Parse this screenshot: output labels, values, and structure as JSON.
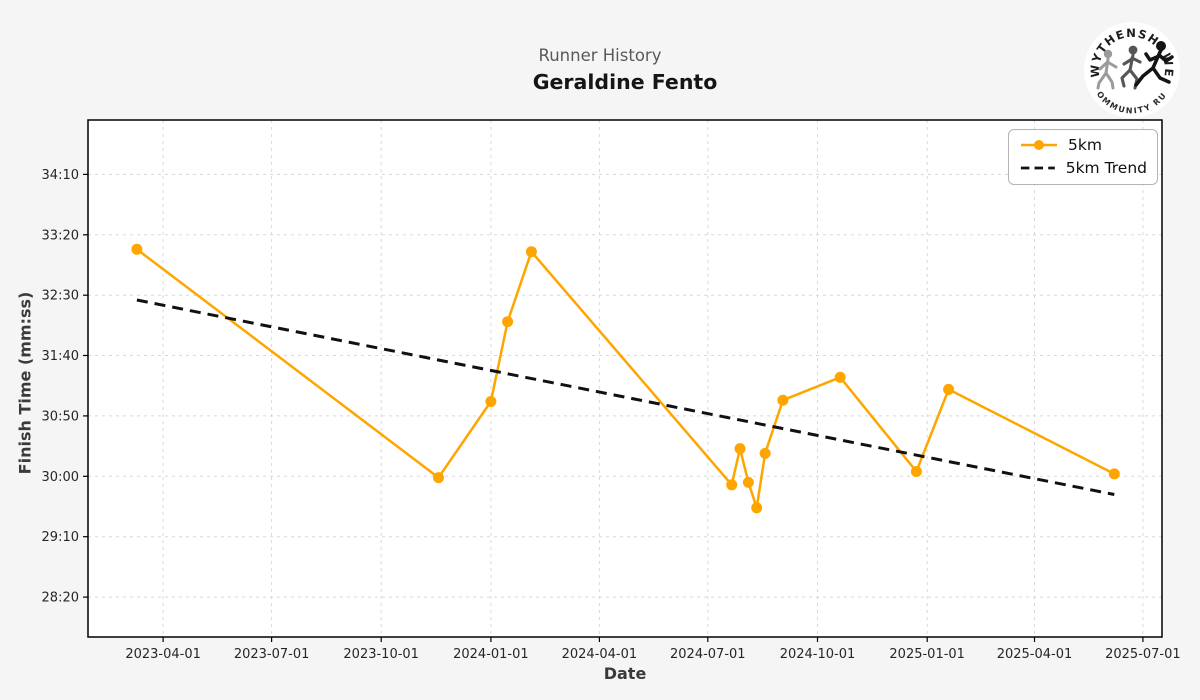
{
  "header": {
    "subtitle": "Runner History",
    "title": "Geraldine Fento"
  },
  "logo": {
    "top_text": "WYTHENSHAWE",
    "bottom_text": "COMMUNITY RUN"
  },
  "chart_data": {
    "type": "line",
    "title": "Runner History",
    "runner": "Geraldine Fento",
    "xlabel": "Date",
    "ylabel": "Finish Time (mm:ss)",
    "grid": true,
    "legend_position": "upper right",
    "x_domain": [
      "2023-01-28",
      "2025-07-17"
    ],
    "y_domain": [
      "27:47",
      "34:55"
    ],
    "x_ticks": [
      "2023-04-01",
      "2023-07-01",
      "2023-10-01",
      "2024-01-01",
      "2024-04-01",
      "2024-07-01",
      "2024-10-01",
      "2025-01-01",
      "2025-04-01",
      "2025-07-01"
    ],
    "y_ticks": [
      "34:10",
      "33:20",
      "32:30",
      "31:40",
      "30:50",
      "30:00",
      "29:10",
      "28:20"
    ],
    "colors": {
      "series": "#FFA500",
      "trend": "#111111",
      "grid": "#d8d8d8",
      "spine": "#000000",
      "tick_label": "#262626"
    },
    "series": [
      {
        "name": "5km",
        "color": "#FFA500",
        "style": "solid",
        "marker": "circle",
        "points": [
          {
            "date": "2023-03-10",
            "time": "33:08"
          },
          {
            "date": "2023-11-18",
            "time": "29:59"
          },
          {
            "date": "2024-01-01",
            "time": "31:02"
          },
          {
            "date": "2024-01-15",
            "time": "32:08"
          },
          {
            "date": "2024-02-04",
            "time": "33:06"
          },
          {
            "date": "2024-07-21",
            "time": "29:53"
          },
          {
            "date": "2024-07-28",
            "time": "30:23"
          },
          {
            "date": "2024-08-04",
            "time": "29:55"
          },
          {
            "date": "2024-08-11",
            "time": "29:34"
          },
          {
            "date": "2024-08-18",
            "time": "30:19"
          },
          {
            "date": "2024-09-02",
            "time": "31:03"
          },
          {
            "date": "2024-10-20",
            "time": "31:22"
          },
          {
            "date": "2024-12-23",
            "time": "30:04"
          },
          {
            "date": "2025-01-19",
            "time": "31:12"
          },
          {
            "date": "2025-06-07",
            "time": "30:02"
          }
        ]
      },
      {
        "name": "5km Trend",
        "color": "#111111",
        "style": "dashed",
        "marker": "none",
        "points": [
          {
            "date": "2023-03-10",
            "time": "32:26"
          },
          {
            "date": "2025-06-07",
            "time": "29:45"
          }
        ]
      }
    ]
  }
}
